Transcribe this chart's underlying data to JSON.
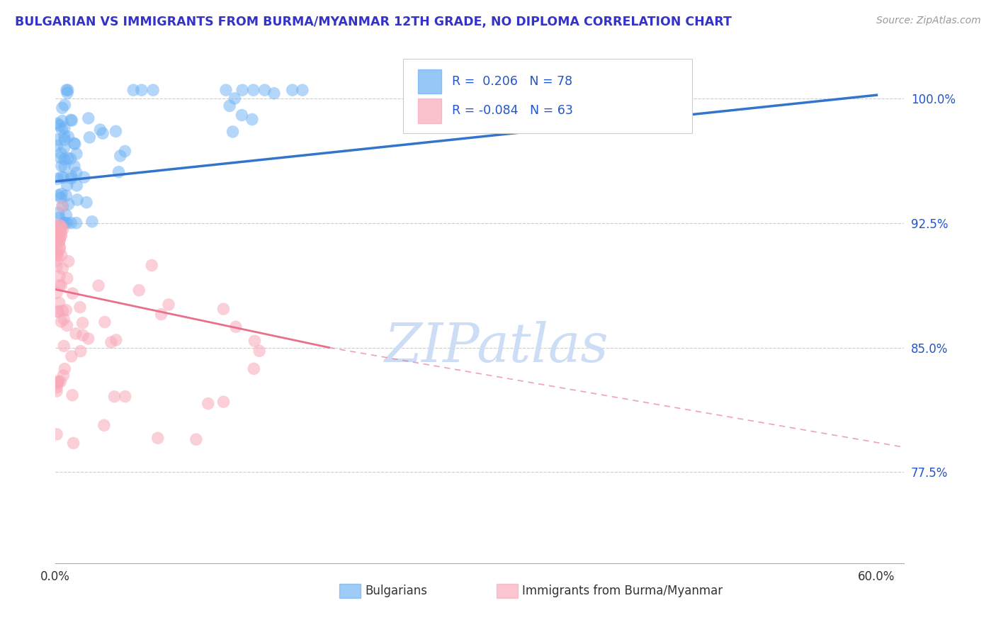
{
  "title": "BULGARIAN VS IMMIGRANTS FROM BURMA/MYANMAR 12TH GRADE, NO DIPLOMA CORRELATION CHART",
  "source": "Source: ZipAtlas.com",
  "ylabel_val": "12th Grade, No Diploma",
  "xlim": [
    0.0,
    0.62
  ],
  "ylim": [
    0.72,
    1.03
  ],
  "blue_R": 0.206,
  "blue_N": 78,
  "pink_R": -0.084,
  "pink_N": 63,
  "blue_color": "#6ab0f5",
  "pink_color": "#f9a8b8",
  "blue_line_color": "#3375cc",
  "pink_line_color": "#e8708a",
  "watermark": "ZIPatlas",
  "watermark_color": "#ccddf5",
  "title_color": "#3333cc",
  "source_color": "#999999",
  "legend_color": "#2255cc",
  "y_ticks": [
    0.775,
    0.85,
    0.925,
    1.0
  ],
  "y_tick_labels": [
    "77.5%",
    "85.0%",
    "92.5%",
    "100.0%"
  ],
  "x_tick_labels": [
    "0.0%",
    "60.0%"
  ],
  "x_tick_pos": [
    0.0,
    0.6
  ]
}
